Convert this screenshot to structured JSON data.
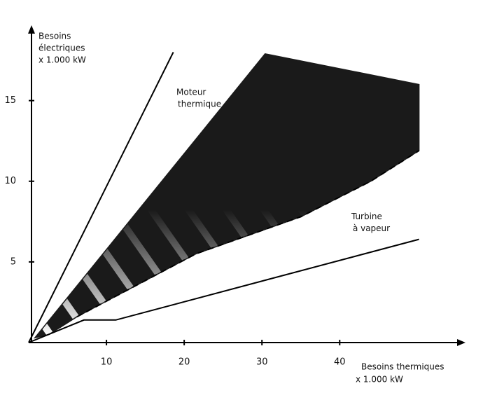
{
  "chart_data": {
    "type": "line",
    "y_label": [
      "Besoins",
      "électriques",
      "x 1.000 kW"
    ],
    "x_label": [
      "Besoins thermiques",
      "x 1.000 kW"
    ],
    "annotations": [
      {
        "lines": [
          "Moteur",
          "thermique"
        ],
        "x": 19,
        "y": 15.5
      },
      {
        "lines": [
          "Turbine",
          "à vapeur"
        ],
        "x": 41.5,
        "y": 7.8
      }
    ],
    "xlim": [
      0,
      56
    ],
    "ylim": [
      0,
      19.5
    ],
    "xticks": [
      10,
      20,
      30,
      40
    ],
    "yticks": [
      5,
      10,
      15
    ],
    "series": [
      {
        "kind": "region",
        "color": "#1a1a1a",
        "x": [
          0.8,
          30.4,
          50.2,
          50.2,
          44,
          35,
          21.5,
          6.2,
          2.6
        ],
        "values": [
          0.3,
          17.9,
          16,
          11.9,
          10,
          7.8,
          5.5,
          1.6,
          0.5
        ]
      },
      {
        "kind": "solid",
        "color": "#000000",
        "x": [
          0,
          18.6
        ],
        "values": [
          0,
          18
        ]
      },
      {
        "kind": "solid",
        "color": "#000000",
        "x": [
          0,
          7.1,
          11.2,
          50.2
        ],
        "values": [
          0,
          1.4,
          1.4,
          6.4
        ]
      },
      {
        "kind": "dashed",
        "color": "#000000",
        "x": [
          6.2,
          21.5,
          35,
          44,
          50.2
        ],
        "values": [
          1.6,
          5.5,
          7.8,
          10,
          11.9
        ]
      }
    ]
  }
}
